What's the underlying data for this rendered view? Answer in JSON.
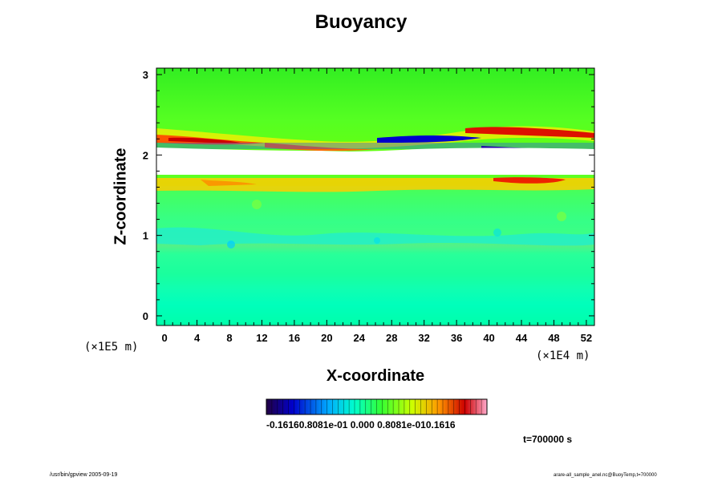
{
  "chart_data": {
    "type": "heatmap",
    "title": "Buoyancy",
    "xlabel": "X-coordinate",
    "ylabel": "Z-coordinate",
    "x_ticks": [
      "0",
      "4",
      "8",
      "12",
      "16",
      "20",
      "24",
      "28",
      "32",
      "36",
      "40",
      "44",
      "48",
      "52"
    ],
    "y_ticks": [
      "0",
      "1",
      "2",
      "3"
    ],
    "x_unit": "(×1E4 m)",
    "y_unit": "(×1E5 m)",
    "xlim": [
      -1,
      53
    ],
    "ylim": [
      -0.12,
      3.08
    ],
    "colorbar": {
      "ticks_text": "-0.16160.8081e-01 0.000 0.8081e-010.1616",
      "min": -0.1616,
      "max": 0.1616
    },
    "regions": [
      {
        "z_range": [
          -0.12,
          0.9
        ],
        "value": 0.0,
        "description": "uniform near-zero field"
      },
      {
        "z_range": [
          0.9,
          1.1
        ],
        "value": -0.02,
        "description": "weak negative band"
      },
      {
        "z_range": [
          1.1,
          1.6
        ],
        "value": 0.025,
        "description": "weak positive"
      },
      {
        "z_range": [
          1.6,
          1.72
        ],
        "value": 0.07,
        "description": "positive band below gap"
      },
      {
        "z_range": [
          1.72,
          2.05
        ],
        "value": null,
        "description": "no data (blank)"
      },
      {
        "z_range": [
          2.05,
          2.3
        ],
        "value": [
          -0.16,
          0.16
        ],
        "description": "strong alternating bands above gap"
      },
      {
        "z_range": [
          2.3,
          3.08
        ],
        "value": 0.02,
        "description": "weak positive above"
      }
    ],
    "annotation": "t=700000 s"
  },
  "footer": {
    "left": "/usr/bin/gpview 2005-09-19",
    "right": "arare-all_sample_anel.nc@BuoyTemp,t=700000"
  },
  "colors": {
    "colorbar_stops": [
      "#220044",
      "#0000cc",
      "#00aaff",
      "#00ffcc",
      "#33ff33",
      "#ccff00",
      "#ff9900",
      "#cc0000",
      "#ffaacc"
    ]
  }
}
